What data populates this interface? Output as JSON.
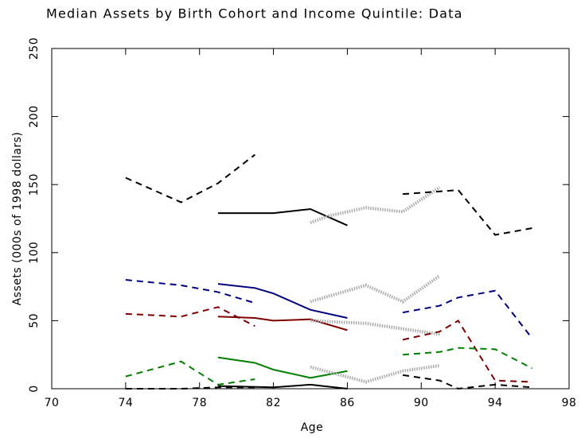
{
  "chart_data": {
    "type": "line",
    "title": "Median Assets by Birth Cohort and Income Quintile:  Data",
    "xlabel": "Age",
    "ylabel": "Assets (000s of 1998 dollars)",
    "xlim": [
      70,
      98
    ],
    "xticks": [
      70,
      74,
      78,
      82,
      86,
      90,
      94,
      98
    ],
    "ylim": [
      0,
      250
    ],
    "yticks": [
      0,
      50,
      100,
      150,
      200,
      250
    ],
    "series": [
      {
        "color": "#000000",
        "style": "dashed",
        "x": [
          74,
          77,
          79,
          81
        ],
        "values": [
          155,
          137,
          151,
          172
        ]
      },
      {
        "color": "#000000",
        "style": "solid",
        "x": [
          79,
          82,
          84,
          86
        ],
        "values": [
          129,
          129,
          132,
          120
        ]
      },
      {
        "color": "#aaaaaa",
        "style": "dotted",
        "x": [
          84,
          85,
          87,
          89,
          91
        ],
        "values": [
          122,
          127,
          133,
          130,
          148
        ]
      },
      {
        "color": "#000000",
        "style": "dashed",
        "x": [
          89,
          92,
          94,
          96
        ],
        "values": [
          143,
          146,
          113,
          118
        ]
      },
      {
        "color": "#00007f",
        "style": "dashed",
        "x": [
          74,
          77,
          79,
          81
        ],
        "values": [
          80,
          76,
          71,
          63
        ]
      },
      {
        "color": "#00007f",
        "style": "solid",
        "x": [
          79,
          81,
          82,
          84,
          86
        ],
        "values": [
          77,
          74,
          70,
          58,
          52
        ]
      },
      {
        "color": "#aaaaaa",
        "style": "dotted",
        "x": [
          84,
          87,
          89,
          91
        ],
        "values": [
          64,
          76,
          64,
          83
        ]
      },
      {
        "color": "#00007f",
        "style": "dashed",
        "x": [
          89,
          91,
          92,
          94,
          96
        ],
        "values": [
          56,
          61,
          67,
          72,
          37
        ]
      },
      {
        "color": "#7f0000",
        "style": "dashed",
        "x": [
          74,
          77,
          79,
          81
        ],
        "values": [
          55,
          53,
          60,
          46
        ]
      },
      {
        "color": "#7f0000",
        "style": "solid",
        "x": [
          79,
          81,
          82,
          84,
          86
        ],
        "values": [
          53,
          52,
          50,
          51,
          43
        ]
      },
      {
        "color": "#aaaaaa",
        "style": "dotted",
        "x": [
          84,
          87,
          89,
          91
        ],
        "values": [
          50,
          48,
          44,
          40
        ]
      },
      {
        "color": "#7f0000",
        "style": "dashed",
        "x": [
          89,
          91,
          92,
          94,
          96
        ],
        "values": [
          36,
          42,
          50,
          6,
          5
        ]
      },
      {
        "color": "#007f00",
        "style": "dashed",
        "x": [
          74,
          77,
          79,
          81
        ],
        "values": [
          9,
          20,
          3,
          7
        ]
      },
      {
        "color": "#007f00",
        "style": "solid",
        "x": [
          79,
          81,
          82,
          84,
          86
        ],
        "values": [
          23,
          19,
          14,
          8,
          13
        ]
      },
      {
        "color": "#aaaaaa",
        "style": "dotted",
        "x": [
          84,
          87,
          89,
          91
        ],
        "values": [
          16,
          5,
          13,
          17
        ]
      },
      {
        "color": "#007f00",
        "style": "dashed",
        "x": [
          89,
          91,
          92,
          94,
          96
        ],
        "values": [
          25,
          27,
          30,
          29,
          15
        ]
      },
      {
        "color": "#000000",
        "style": "dashed",
        "x": [
          74,
          77,
          79,
          81
        ],
        "values": [
          0,
          0,
          1,
          1
        ]
      },
      {
        "color": "#000000",
        "style": "solid",
        "x": [
          79,
          82,
          84,
          86
        ],
        "values": [
          2,
          1,
          3,
          0
        ]
      },
      {
        "color": "#000000",
        "style": "dashed",
        "x": [
          89,
          91,
          92,
          94,
          96
        ],
        "values": [
          10,
          6,
          0,
          3,
          1
        ]
      }
    ]
  }
}
